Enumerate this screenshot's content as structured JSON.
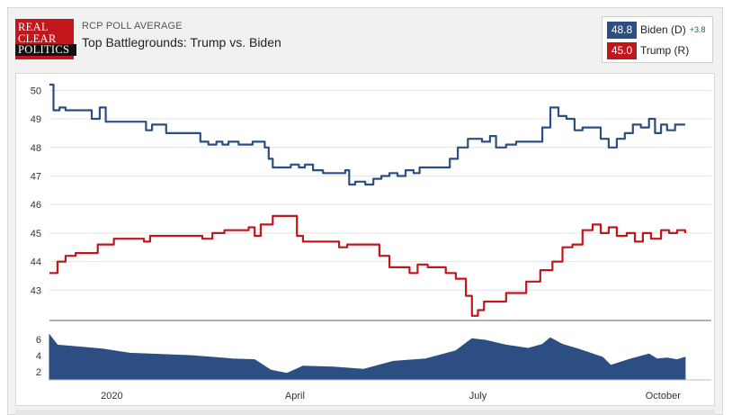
{
  "header": {
    "logo_lines": [
      "REAL",
      "CLEAR",
      "POLITICS"
    ],
    "kicker": "RCP POLL AVERAGE",
    "title": "Top Battlegrounds: Trump vs. Biden"
  },
  "legend": [
    {
      "value": "48.8",
      "name": "Biden (D)",
      "spread": "+3.8",
      "color": "#2c4e80"
    },
    {
      "value": "45.0",
      "name": "Trump (R)",
      "spread": "",
      "color": "#c0161c"
    }
  ],
  "colors": {
    "biden": "#2c4e80",
    "trump": "#c0161c",
    "spread_fill": "#2d4e83"
  },
  "chart_data": [
    {
      "type": "line",
      "ylim": [
        42,
        50.2
      ],
      "yticks": [
        "50",
        "49",
        "48",
        "47",
        "46",
        "45",
        "44",
        "43"
      ],
      "xlim": [
        "2019-12-01",
        "2020-10-25"
      ],
      "xticks": [
        {
          "label": "2020",
          "date": "2020-01-01"
        },
        {
          "label": "April",
          "date": "2020-04-01"
        },
        {
          "label": "July",
          "date": "2020-07-01"
        },
        {
          "label": "October",
          "date": "2020-10-01"
        }
      ],
      "grid": true,
      "series": [
        {
          "name": "Biden (D)",
          "points": [
            [
              "2019-12-01",
              50.2
            ],
            [
              "2019-12-03",
              49.3
            ],
            [
              "2019-12-06",
              49.4
            ],
            [
              "2019-12-09",
              49.3
            ],
            [
              "2019-12-20",
              49.3
            ],
            [
              "2019-12-22",
              49.0
            ],
            [
              "2019-12-26",
              49.4
            ],
            [
              "2019-12-29",
              48.9
            ],
            [
              "2020-01-15",
              48.9
            ],
            [
              "2020-01-18",
              48.6
            ],
            [
              "2020-01-21",
              48.8
            ],
            [
              "2020-01-25",
              48.8
            ],
            [
              "2020-01-28",
              48.5
            ],
            [
              "2020-02-11",
              48.5
            ],
            [
              "2020-02-14",
              48.2
            ],
            [
              "2020-02-18",
              48.1
            ],
            [
              "2020-02-22",
              48.2
            ],
            [
              "2020-02-25",
              48.1
            ],
            [
              "2020-02-28",
              48.2
            ],
            [
              "2020-03-04",
              48.1
            ],
            [
              "2020-03-11",
              48.2
            ],
            [
              "2020-03-17",
              48.0
            ],
            [
              "2020-03-19",
              47.6
            ],
            [
              "2020-03-21",
              47.3
            ],
            [
              "2020-03-27",
              47.3
            ],
            [
              "2020-03-30",
              47.4
            ],
            [
              "2020-04-03",
              47.3
            ],
            [
              "2020-04-06",
              47.4
            ],
            [
              "2020-04-10",
              47.2
            ],
            [
              "2020-04-15",
              47.1
            ],
            [
              "2020-04-23",
              47.1
            ],
            [
              "2020-04-26",
              47.2
            ],
            [
              "2020-04-28",
              46.7
            ],
            [
              "2020-05-01",
              46.8
            ],
            [
              "2020-05-06",
              46.7
            ],
            [
              "2020-05-10",
              46.9
            ],
            [
              "2020-05-14",
              47.0
            ],
            [
              "2020-05-18",
              47.1
            ],
            [
              "2020-05-22",
              47.0
            ],
            [
              "2020-05-26",
              47.2
            ],
            [
              "2020-05-30",
              47.1
            ],
            [
              "2020-06-02",
              47.3
            ],
            [
              "2020-06-12",
              47.3
            ],
            [
              "2020-06-17",
              47.6
            ],
            [
              "2020-06-21",
              48.0
            ],
            [
              "2020-06-26",
              48.3
            ],
            [
              "2020-06-29",
              48.3
            ],
            [
              "2020-07-03",
              48.2
            ],
            [
              "2020-07-07",
              48.4
            ],
            [
              "2020-07-10",
              48.0
            ],
            [
              "2020-07-15",
              48.1
            ],
            [
              "2020-07-20",
              48.2
            ],
            [
              "2020-07-26",
              48.2
            ],
            [
              "2020-08-02",
              48.7
            ],
            [
              "2020-08-06",
              49.4
            ],
            [
              "2020-08-10",
              49.1
            ],
            [
              "2020-08-14",
              49.0
            ],
            [
              "2020-08-18",
              48.6
            ],
            [
              "2020-08-22",
              48.7
            ],
            [
              "2020-08-27",
              48.7
            ],
            [
              "2020-08-31",
              48.3
            ],
            [
              "2020-09-04",
              48.0
            ],
            [
              "2020-09-08",
              48.3
            ],
            [
              "2020-09-12",
              48.5
            ],
            [
              "2020-09-16",
              48.8
            ],
            [
              "2020-09-20",
              48.7
            ],
            [
              "2020-09-24",
              49.0
            ],
            [
              "2020-09-27",
              48.5
            ],
            [
              "2020-09-30",
              48.8
            ],
            [
              "2020-10-03",
              48.6
            ],
            [
              "2020-10-07",
              48.8
            ],
            [
              "2020-10-12",
              48.8
            ]
          ]
        },
        {
          "name": "Trump (R)",
          "points": [
            [
              "2019-12-01",
              43.6
            ],
            [
              "2019-12-05",
              44.0
            ],
            [
              "2019-12-09",
              44.2
            ],
            [
              "2019-12-14",
              44.3
            ],
            [
              "2019-12-21",
              44.3
            ],
            [
              "2019-12-25",
              44.6
            ],
            [
              "2020-01-02",
              44.8
            ],
            [
              "2020-01-14",
              44.8
            ],
            [
              "2020-01-17",
              44.7
            ],
            [
              "2020-01-20",
              44.9
            ],
            [
              "2020-02-15",
              44.8
            ],
            [
              "2020-02-20",
              45.0
            ],
            [
              "2020-02-26",
              45.1
            ],
            [
              "2020-03-06",
              45.1
            ],
            [
              "2020-03-09",
              45.2
            ],
            [
              "2020-03-12",
              44.9
            ],
            [
              "2020-03-15",
              45.3
            ],
            [
              "2020-03-21",
              45.6
            ],
            [
              "2020-03-29",
              45.6
            ],
            [
              "2020-04-02",
              44.9
            ],
            [
              "2020-04-05",
              44.7
            ],
            [
              "2020-04-20",
              44.7
            ],
            [
              "2020-04-23",
              44.5
            ],
            [
              "2020-04-27",
              44.6
            ],
            [
              "2020-05-07",
              44.6
            ],
            [
              "2020-05-13",
              44.2
            ],
            [
              "2020-05-18",
              43.8
            ],
            [
              "2020-05-24",
              43.8
            ],
            [
              "2020-05-28",
              43.6
            ],
            [
              "2020-06-01",
              43.9
            ],
            [
              "2020-06-06",
              43.8
            ],
            [
              "2020-06-11",
              43.8
            ],
            [
              "2020-06-15",
              43.6
            ],
            [
              "2020-06-20",
              43.4
            ],
            [
              "2020-06-25",
              42.8
            ],
            [
              "2020-06-28",
              42.1
            ],
            [
              "2020-07-01",
              42.3
            ],
            [
              "2020-07-04",
              42.6
            ],
            [
              "2020-07-11",
              42.6
            ],
            [
              "2020-07-15",
              42.9
            ],
            [
              "2020-07-22",
              42.9
            ],
            [
              "2020-07-25",
              43.3
            ],
            [
              "2020-08-01",
              43.7
            ],
            [
              "2020-08-07",
              44.0
            ],
            [
              "2020-08-12",
              44.5
            ],
            [
              "2020-08-17",
              44.6
            ],
            [
              "2020-08-22",
              45.1
            ],
            [
              "2020-08-27",
              45.3
            ],
            [
              "2020-08-31",
              45.0
            ],
            [
              "2020-09-04",
              45.2
            ],
            [
              "2020-09-08",
              44.9
            ],
            [
              "2020-09-13",
              45.0
            ],
            [
              "2020-09-17",
              44.7
            ],
            [
              "2020-09-21",
              45.0
            ],
            [
              "2020-09-25",
              44.8
            ],
            [
              "2020-09-30",
              45.1
            ],
            [
              "2020-10-04",
              45.0
            ],
            [
              "2020-10-08",
              45.1
            ],
            [
              "2020-10-12",
              45.0
            ]
          ]
        }
      ]
    },
    {
      "type": "area",
      "ylim": [
        1,
        6.8
      ],
      "yticks": [
        "6",
        "4",
        "2"
      ],
      "xlim": [
        "2019-12-01",
        "2020-10-25"
      ],
      "grid": false,
      "points": [
        [
          "2019-12-01",
          6.6
        ],
        [
          "2019-12-05",
          5.3
        ],
        [
          "2019-12-15",
          5.1
        ],
        [
          "2019-12-28",
          4.8
        ],
        [
          "2020-01-10",
          4.3
        ],
        [
          "2020-02-10",
          4.0
        ],
        [
          "2020-03-01",
          3.6
        ],
        [
          "2020-03-12",
          3.5
        ],
        [
          "2020-03-20",
          2.2
        ],
        [
          "2020-03-28",
          1.8
        ],
        [
          "2020-04-05",
          2.7
        ],
        [
          "2020-04-20",
          2.6
        ],
        [
          "2020-05-05",
          2.3
        ],
        [
          "2020-05-20",
          3.3
        ],
        [
          "2020-06-05",
          3.6
        ],
        [
          "2020-06-20",
          4.6
        ],
        [
          "2020-06-28",
          6.1
        ],
        [
          "2020-07-05",
          5.9
        ],
        [
          "2020-07-15",
          5.3
        ],
        [
          "2020-07-26",
          4.9
        ],
        [
          "2020-08-02",
          5.4
        ],
        [
          "2020-08-06",
          6.2
        ],
        [
          "2020-08-12",
          5.4
        ],
        [
          "2020-08-20",
          4.8
        ],
        [
          "2020-09-01",
          3.8
        ],
        [
          "2020-09-05",
          2.8
        ],
        [
          "2020-09-15",
          3.6
        ],
        [
          "2020-09-24",
          4.2
        ],
        [
          "2020-09-28",
          3.6
        ],
        [
          "2020-10-03",
          3.7
        ],
        [
          "2020-10-08",
          3.5
        ],
        [
          "2020-10-12",
          3.8
        ]
      ]
    }
  ]
}
